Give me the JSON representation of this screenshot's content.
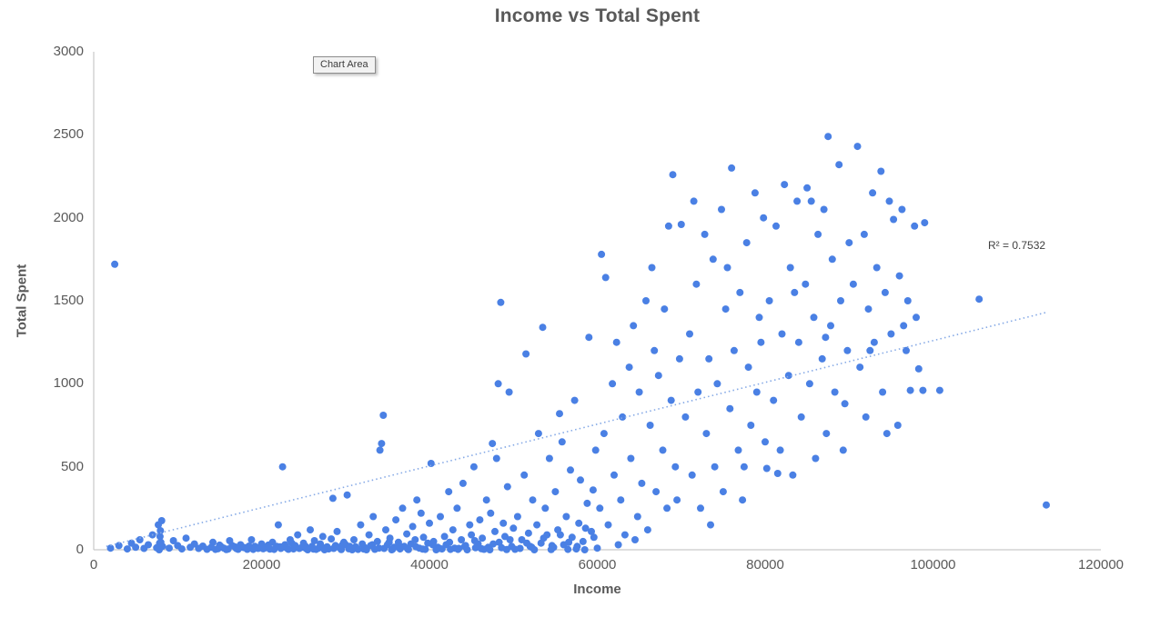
{
  "title": "Income vs Total Spent",
  "tooltip": {
    "label": "Chart Area"
  },
  "annotations": {
    "r_squared": "R² = 0.7532"
  },
  "chart_data": {
    "type": "scatter",
    "title": "Income vs Total Spent",
    "xlabel": "Income",
    "ylabel": "Total Spent",
    "xlim": [
      0,
      120000
    ],
    "ylim": [
      0,
      3000
    ],
    "x_ticks": [
      0,
      20000,
      40000,
      60000,
      80000,
      100000,
      120000
    ],
    "y_ticks": [
      0,
      500,
      1000,
      1500,
      2000,
      2500,
      3000
    ],
    "x_tick_labels": [
      "0",
      "20000",
      "40000",
      "60000",
      "80000",
      "100000",
      "120000"
    ],
    "y_tick_labels": [
      "0",
      "500",
      "1000",
      "1500",
      "2000",
      "2500",
      "3000"
    ],
    "grid": false,
    "legend": "none",
    "point_color": "#4a80e4",
    "axis_color": "#c9c9c9",
    "trendline": {
      "style": "dotted",
      "color": "#85a9e6",
      "x1": 1500,
      "y1": 20,
      "x2": 113500,
      "y2": 1430,
      "r_squared": 0.7532
    },
    "points": [
      [
        2000,
        10
      ],
      [
        2500,
        1720
      ],
      [
        3000,
        25
      ],
      [
        4000,
        5
      ],
      [
        4500,
        40
      ],
      [
        5000,
        15
      ],
      [
        5500,
        60
      ],
      [
        6000,
        8
      ],
      [
        6500,
        30
      ],
      [
        7000,
        90
      ],
      [
        7500,
        12
      ],
      [
        7700,
        150
      ],
      [
        7800,
        0
      ],
      [
        7850,
        40
      ],
      [
        7900,
        80
      ],
      [
        7950,
        115
      ],
      [
        8000,
        45
      ],
      [
        8100,
        175
      ],
      [
        8200,
        20
      ],
      [
        9000,
        10
      ],
      [
        9500,
        55
      ],
      [
        10000,
        25
      ],
      [
        10500,
        5
      ],
      [
        11000,
        70
      ],
      [
        11500,
        15
      ],
      [
        12000,
        35
      ],
      [
        12500,
        8
      ],
      [
        13000,
        22
      ],
      [
        13500,
        3
      ],
      [
        14000,
        15
      ],
      [
        14200,
        45
      ],
      [
        14800,
        6
      ],
      [
        15000,
        28
      ],
      [
        15500,
        10
      ],
      [
        16000,
        4
      ],
      [
        16200,
        55
      ],
      [
        16800,
        18
      ],
      [
        17000,
        7
      ],
      [
        17500,
        30
      ],
      [
        18000,
        12
      ],
      [
        18300,
        3
      ],
      [
        18800,
        60
      ],
      [
        19200,
        20
      ],
      [
        19600,
        8
      ],
      [
        20000,
        35
      ],
      [
        14500,
        2
      ],
      [
        15200,
        18
      ],
      [
        15800,
        1
      ],
      [
        16500,
        25
      ],
      [
        17200,
        3
      ],
      [
        17800,
        14
      ],
      [
        18500,
        22
      ],
      [
        19000,
        2
      ],
      [
        19800,
        16
      ],
      [
        20200,
        6
      ],
      [
        20500,
        12
      ],
      [
        20800,
        28
      ],
      [
        21000,
        4
      ],
      [
        21300,
        45
      ],
      [
        21500,
        2
      ],
      [
        21800,
        20
      ],
      [
        22000,
        150
      ],
      [
        22200,
        18
      ],
      [
        22300,
        8
      ],
      [
        22500,
        500
      ],
      [
        22800,
        30
      ],
      [
        23000,
        10
      ],
      [
        23200,
        3
      ],
      [
        23400,
        60
      ],
      [
        23600,
        40
      ],
      [
        23800,
        5
      ],
      [
        24000,
        25
      ],
      [
        24300,
        90
      ],
      [
        24500,
        8
      ],
      [
        24800,
        15
      ],
      [
        25000,
        40
      ],
      [
        25200,
        22
      ],
      [
        25300,
        7
      ],
      [
        25500,
        0
      ],
      [
        25800,
        120
      ],
      [
        26000,
        20
      ],
      [
        26200,
        4
      ],
      [
        26300,
        55
      ],
      [
        26500,
        2
      ],
      [
        26800,
        10
      ],
      [
        27000,
        35
      ],
      [
        27200,
        15
      ],
      [
        27300,
        80
      ],
      [
        27500,
        0
      ],
      [
        27800,
        18
      ],
      [
        28000,
        5
      ],
      [
        28300,
        65
      ],
      [
        28500,
        310
      ],
      [
        28600,
        8
      ],
      [
        28800,
        25
      ],
      [
        29000,
        110
      ],
      [
        29300,
        12
      ],
      [
        29500,
        1
      ],
      [
        29600,
        28
      ],
      [
        29800,
        45
      ],
      [
        30000,
        30
      ],
      [
        30200,
        330
      ],
      [
        30400,
        6
      ],
      [
        30500,
        20
      ],
      [
        30800,
        0
      ],
      [
        31000,
        60
      ],
      [
        31200,
        18
      ],
      [
        31300,
        8
      ],
      [
        31500,
        2
      ],
      [
        31800,
        150
      ],
      [
        32000,
        35
      ],
      [
        32200,
        4
      ],
      [
        32300,
        12
      ],
      [
        32500,
        0
      ],
      [
        32800,
        90
      ],
      [
        33000,
        25
      ],
      [
        33200,
        30
      ],
      [
        33300,
        200
      ],
      [
        33500,
        3
      ],
      [
        33800,
        50
      ],
      [
        34000,
        10
      ],
      [
        34100,
        600
      ],
      [
        34300,
        640
      ],
      [
        34500,
        810
      ],
      [
        34600,
        8
      ],
      [
        34800,
        120
      ],
      [
        35000,
        30
      ],
      [
        35200,
        45
      ],
      [
        35300,
        70
      ],
      [
        35500,
        0
      ],
      [
        35600,
        2
      ],
      [
        35800,
        15
      ],
      [
        36000,
        180
      ],
      [
        36300,
        45
      ],
      [
        36400,
        25
      ],
      [
        36500,
        5
      ],
      [
        36800,
        250
      ],
      [
        37000,
        20
      ],
      [
        37300,
        95
      ],
      [
        37400,
        6
      ],
      [
        37500,
        1
      ],
      [
        37800,
        35
      ],
      [
        38000,
        140
      ],
      [
        38300,
        60
      ],
      [
        38400,
        18
      ],
      [
        38500,
        300
      ],
      [
        38800,
        10
      ],
      [
        39000,
        220
      ],
      [
        39200,
        4
      ],
      [
        39300,
        75
      ],
      [
        39500,
        2
      ],
      [
        39800,
        40
      ],
      [
        40000,
        160
      ],
      [
        40200,
        520
      ],
      [
        40400,
        30
      ],
      [
        40500,
        50
      ],
      [
        40800,
        0
      ],
      [
        41000,
        15
      ],
      [
        41200,
        8
      ],
      [
        41300,
        200
      ],
      [
        41500,
        5
      ],
      [
        41800,
        80
      ],
      [
        42000,
        30
      ],
      [
        42300,
        350
      ],
      [
        42400,
        45
      ],
      [
        42500,
        2
      ],
      [
        42800,
        120
      ],
      [
        43000,
        10
      ],
      [
        43300,
        250
      ],
      [
        43400,
        2
      ],
      [
        43500,
        8
      ],
      [
        43800,
        60
      ],
      [
        44000,
        400
      ],
      [
        44200,
        20
      ],
      [
        44300,
        25
      ],
      [
        44500,
        0
      ],
      [
        44800,
        150
      ],
      [
        45000,
        90
      ],
      [
        45300,
        500
      ],
      [
        45400,
        55
      ],
      [
        45500,
        12
      ],
      [
        45800,
        35
      ],
      [
        46000,
        180
      ],
      [
        46200,
        6
      ],
      [
        46300,
        70
      ],
      [
        46500,
        3
      ],
      [
        46800,
        300
      ],
      [
        47000,
        15
      ],
      [
        47200,
        0
      ],
      [
        47300,
        220
      ],
      [
        47500,
        640
      ],
      [
        47600,
        35
      ],
      [
        47800,
        110
      ],
      [
        48000,
        550
      ],
      [
        48200,
        1000
      ],
      [
        48300,
        45
      ],
      [
        48500,
        1490
      ],
      [
        48600,
        12
      ],
      [
        48800,
        160
      ],
      [
        49000,
        80
      ],
      [
        49200,
        1
      ],
      [
        49300,
        380
      ],
      [
        49500,
        950
      ],
      [
        49600,
        60
      ],
      [
        49800,
        20
      ],
      [
        50000,
        130
      ],
      [
        50200,
        3
      ],
      [
        50500,
        200
      ],
      [
        50800,
        8
      ],
      [
        51000,
        60
      ],
      [
        51300,
        450
      ],
      [
        51500,
        1180
      ],
      [
        51600,
        40
      ],
      [
        51800,
        100
      ],
      [
        52000,
        20
      ],
      [
        52200,
        15
      ],
      [
        52300,
        300
      ],
      [
        52500,
        0
      ],
      [
        52800,
        150
      ],
      [
        53000,
        700
      ],
      [
        53300,
        40
      ],
      [
        53500,
        1340
      ],
      [
        53600,
        70
      ],
      [
        53800,
        250
      ],
      [
        54000,
        90
      ],
      [
        54300,
        550
      ],
      [
        54500,
        1
      ],
      [
        54600,
        25
      ],
      [
        54800,
        15
      ],
      [
        55000,
        350
      ],
      [
        55300,
        120
      ],
      [
        55500,
        820
      ],
      [
        55600,
        90
      ],
      [
        55800,
        650
      ],
      [
        56000,
        30
      ],
      [
        56300,
        200
      ],
      [
        56500,
        2
      ],
      [
        56600,
        45
      ],
      [
        56800,
        480
      ],
      [
        57000,
        75
      ],
      [
        57300,
        900
      ],
      [
        57500,
        5
      ],
      [
        57600,
        20
      ],
      [
        57800,
        160
      ],
      [
        58000,
        420
      ],
      [
        58300,
        50
      ],
      [
        58500,
        0
      ],
      [
        58600,
        130
      ],
      [
        58800,
        280
      ],
      [
        59000,
        1280
      ],
      [
        59300,
        110
      ],
      [
        59500,
        360
      ],
      [
        59600,
        75
      ],
      [
        59800,
        600
      ],
      [
        60000,
        10
      ],
      [
        60300,
        250
      ],
      [
        60500,
        1780
      ],
      [
        60800,
        700
      ],
      [
        61000,
        1640
      ],
      [
        61300,
        150
      ],
      [
        61800,
        1000
      ],
      [
        62000,
        450
      ],
      [
        62300,
        1250
      ],
      [
        62500,
        30
      ],
      [
        62800,
        300
      ],
      [
        63000,
        800
      ],
      [
        63300,
        90
      ],
      [
        63800,
        1100
      ],
      [
        64000,
        550
      ],
      [
        64300,
        1350
      ],
      [
        64500,
        60
      ],
      [
        64800,
        200
      ],
      [
        65000,
        950
      ],
      [
        65300,
        400
      ],
      [
        65800,
        1500
      ],
      [
        66000,
        120
      ],
      [
        66300,
        750
      ],
      [
        66500,
        1700
      ],
      [
        66800,
        1200
      ],
      [
        67000,
        350
      ],
      [
        67300,
        1050
      ],
      [
        67800,
        600
      ],
      [
        68000,
        1450
      ],
      [
        68300,
        250
      ],
      [
        68500,
        1950
      ],
      [
        68800,
        900
      ],
      [
        69000,
        2260
      ],
      [
        69300,
        500
      ],
      [
        69500,
        300
      ],
      [
        69800,
        1150
      ],
      [
        70000,
        1960
      ],
      [
        70500,
        800
      ],
      [
        71000,
        1300
      ],
      [
        71300,
        450
      ],
      [
        71500,
        2100
      ],
      [
        71800,
        1600
      ],
      [
        72000,
        950
      ],
      [
        72300,
        250
      ],
      [
        72800,
        1900
      ],
      [
        73000,
        700
      ],
      [
        73300,
        1150
      ],
      [
        73500,
        150
      ],
      [
        73800,
        1750
      ],
      [
        74000,
        500
      ],
      [
        74300,
        1000
      ],
      [
        74800,
        2050
      ],
      [
        75000,
        350
      ],
      [
        75300,
        1450
      ],
      [
        75500,
        1700
      ],
      [
        75800,
        850
      ],
      [
        76000,
        2300
      ],
      [
        76300,
        1200
      ],
      [
        76800,
        600
      ],
      [
        77000,
        1550
      ],
      [
        77300,
        300
      ],
      [
        77500,
        500
      ],
      [
        77800,
        1850
      ],
      [
        78000,
        1100
      ],
      [
        78300,
        750
      ],
      [
        78800,
        2150
      ],
      [
        79000,
        950
      ],
      [
        79300,
        1400
      ],
      [
        79500,
        1250
      ],
      [
        79800,
        2000
      ],
      [
        80000,
        650
      ],
      [
        80200,
        490
      ],
      [
        80500,
        1500
      ],
      [
        81000,
        900
      ],
      [
        81300,
        1950
      ],
      [
        81500,
        460
      ],
      [
        81800,
        600
      ],
      [
        82000,
        1300
      ],
      [
        82300,
        2200
      ],
      [
        82800,
        1050
      ],
      [
        83000,
        1700
      ],
      [
        83300,
        450
      ],
      [
        83500,
        1550
      ],
      [
        83800,
        2100
      ],
      [
        84000,
        1250
      ],
      [
        84300,
        800
      ],
      [
        84800,
        1600
      ],
      [
        85000,
        2180
      ],
      [
        85300,
        1000
      ],
      [
        85500,
        2100
      ],
      [
        85800,
        1400
      ],
      [
        86000,
        550
      ],
      [
        86300,
        1900
      ],
      [
        86800,
        1150
      ],
      [
        87000,
        2050
      ],
      [
        87200,
        1280
      ],
      [
        87300,
        700
      ],
      [
        87500,
        2490
      ],
      [
        87800,
        1350
      ],
      [
        88000,
        1750
      ],
      [
        88300,
        950
      ],
      [
        88800,
        2320
      ],
      [
        89000,
        1500
      ],
      [
        89300,
        600
      ],
      [
        89500,
        880
      ],
      [
        89800,
        1200
      ],
      [
        90000,
        1850
      ],
      [
        90500,
        1600
      ],
      [
        91000,
        2430
      ],
      [
        91300,
        1100
      ],
      [
        91800,
        1900
      ],
      [
        92000,
        800
      ],
      [
        92300,
        1450
      ],
      [
        92500,
        1200
      ],
      [
        92800,
        2150
      ],
      [
        93000,
        1250
      ],
      [
        93300,
        1700
      ],
      [
        93800,
        2280
      ],
      [
        94000,
        950
      ],
      [
        94300,
        1550
      ],
      [
        94500,
        700
      ],
      [
        94800,
        2100
      ],
      [
        95000,
        1300
      ],
      [
        95300,
        1990
      ],
      [
        95800,
        750
      ],
      [
        96000,
        1650
      ],
      [
        96300,
        2050
      ],
      [
        96500,
        1350
      ],
      [
        96800,
        1200
      ],
      [
        97000,
        1500
      ],
      [
        97300,
        960
      ],
      [
        97800,
        1950
      ],
      [
        98000,
        1400
      ],
      [
        98300,
        1090
      ],
      [
        98800,
        960
      ],
      [
        99000,
        1970
      ],
      [
        100800,
        960
      ],
      [
        105500,
        1510
      ],
      [
        113500,
        270
      ]
    ]
  }
}
